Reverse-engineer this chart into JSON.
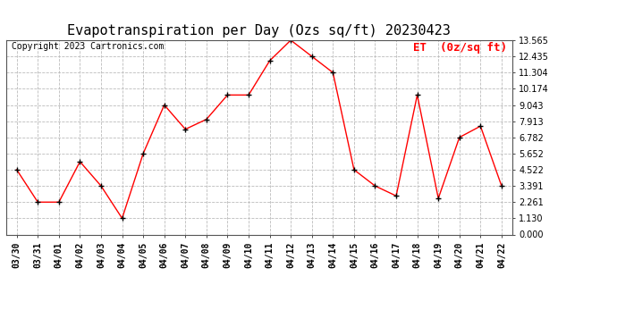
{
  "title": "Evapotranspiration per Day (Ozs sq/ft) 20230423",
  "copyright": "Copyright 2023 Cartronics.com",
  "legend_label": "ET  (0z/sq ft)",
  "dates": [
    "03/30",
    "03/31",
    "04/01",
    "04/02",
    "04/03",
    "04/04",
    "04/05",
    "04/06",
    "04/07",
    "04/08",
    "04/09",
    "04/10",
    "04/11",
    "04/12",
    "04/13",
    "04/14",
    "04/15",
    "04/16",
    "04/17",
    "04/18",
    "04/19",
    "04/20",
    "04/21",
    "04/22"
  ],
  "values": [
    4.522,
    2.261,
    2.261,
    5.087,
    3.391,
    1.13,
    5.652,
    9.043,
    7.348,
    8.043,
    9.739,
    9.739,
    12.13,
    13.565,
    12.435,
    11.304,
    4.522,
    3.391,
    2.696,
    9.739,
    2.522,
    6.782,
    7.565,
    3.391
  ],
  "ylim": [
    0.0,
    13.565
  ],
  "yticks": [
    0.0,
    1.13,
    2.261,
    3.391,
    4.522,
    5.652,
    6.782,
    7.913,
    9.043,
    10.174,
    11.304,
    12.435,
    13.565
  ],
  "line_color": "red",
  "marker": "+",
  "marker_color": "black",
  "grid_color": "#bbbbbb",
  "bg_color": "white",
  "title_fontsize": 11,
  "copyright_fontsize": 7,
  "legend_fontsize": 9,
  "tick_fontsize": 7,
  "ytick_fontsize": 7
}
